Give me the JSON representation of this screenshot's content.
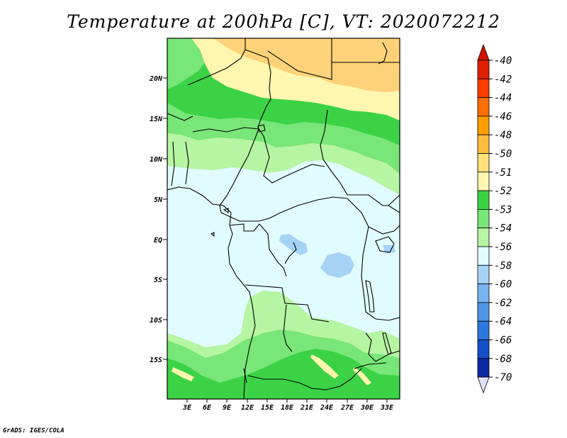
{
  "title": "Temperature at 200hPa [C], VT: 2020072212",
  "credit": "GrADS: IGES/COLA",
  "map": {
    "lon_ticks": [
      "3E",
      "6E",
      "9E",
      "12E",
      "15E",
      "18E",
      "21E",
      "24E",
      "27E",
      "30E",
      "33E"
    ],
    "lat_ticks": [
      "20N",
      "15N",
      "10N",
      "5N",
      "EQ",
      "5S",
      "10S",
      "15S"
    ],
    "fields": [
      {
        "name": "temp-band-le-56",
        "color": "#a6d2f5"
      },
      {
        "name": "temp-band-56-54",
        "color": "#e1fcff"
      },
      {
        "name": "temp-band-54-53",
        "color": "#b6f5a2"
      },
      {
        "name": "temp-band-53-52",
        "color": "#78e678"
      },
      {
        "name": "temp-band-52-51",
        "color": "#3cd246"
      },
      {
        "name": "temp-band-51-50",
        "color": "#fff7b0"
      },
      {
        "name": "temp-band-50-48",
        "color": "#ffd27a"
      }
    ]
  },
  "colorbar": {
    "labels": [
      "-40",
      "-42",
      "-44",
      "-46",
      "-48",
      "-50",
      "-51",
      "-52",
      "-53",
      "-54",
      "-56",
      "-58",
      "-60",
      "-62",
      "-64",
      "-66",
      "-68",
      "-70"
    ],
    "colors": [
      "#e11e00",
      "#ff3c00",
      "#ff6e00",
      "#ff9c00",
      "#ffbe3c",
      "#ffe178",
      "#fff7b0",
      "#3cd246",
      "#78e678",
      "#b6f5a2",
      "#e1fcff",
      "#a6d2f5",
      "#78b4f0",
      "#5096e6",
      "#2d78dc",
      "#1450c8",
      "#0a28a0",
      "#000a6e"
    ],
    "top_arrow_color": "#d21400",
    "bottom_arrow_color": "#e1e1ff"
  }
}
